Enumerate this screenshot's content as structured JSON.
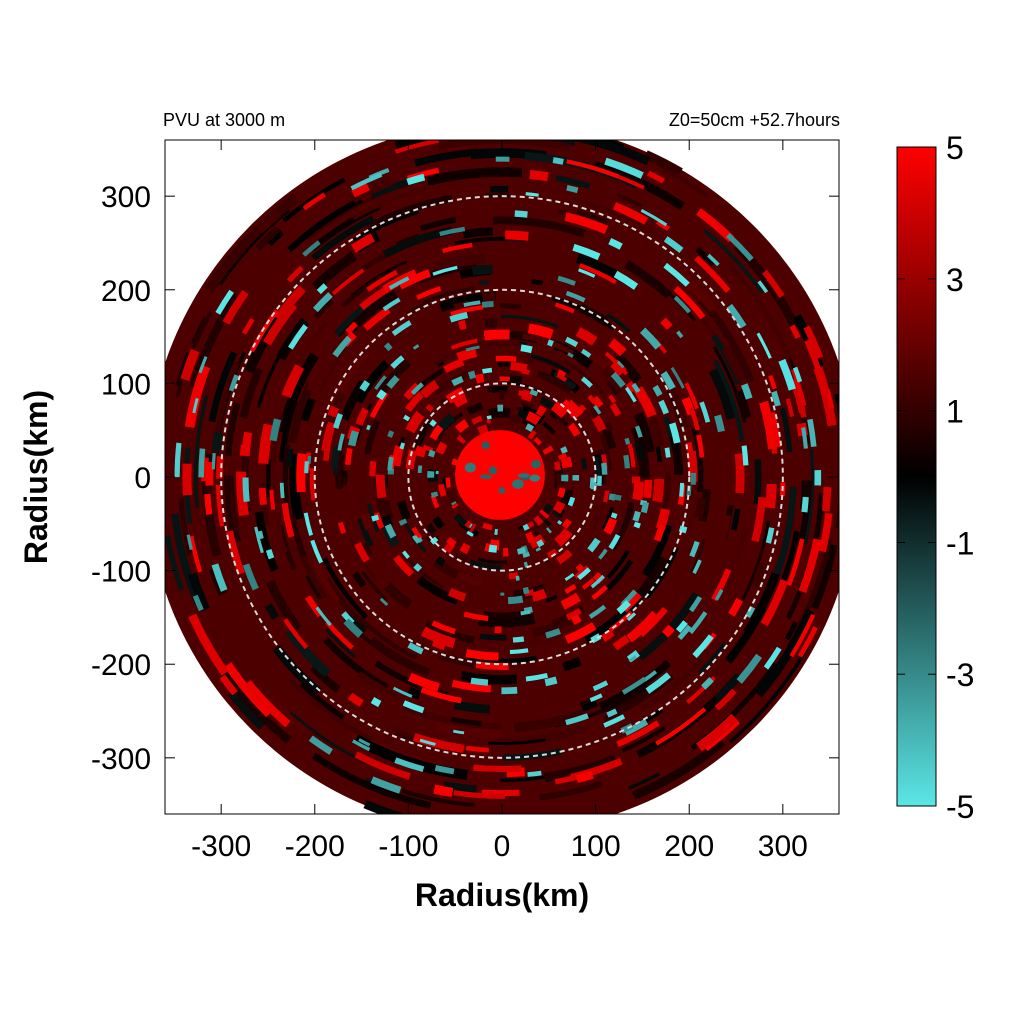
{
  "chart_data": {
    "type": "heatmap",
    "title_left": "PVU at  3000 m",
    "title_right": "Z0=50cm  +52.7hours",
    "xlabel": "Radius(km)",
    "ylabel": "Radius(km)",
    "xlim": [
      -360,
      360
    ],
    "ylim": [
      -360,
      360
    ],
    "x_ticks": [
      -300,
      -200,
      -100,
      0,
      100,
      200,
      300
    ],
    "y_ticks": [
      -300,
      -200,
      -100,
      0,
      100,
      200,
      300
    ],
    "domain_radius_km": 380,
    "reference_circles_km": [
      100,
      200,
      300
    ],
    "colorbar": {
      "min": -5,
      "max": 5,
      "ticks": [
        5,
        3,
        1,
        -1,
        -3,
        -5
      ],
      "colors": {
        "low": "#5be6e6",
        "mid": "#000000",
        "high": "#ff0000"
      }
    },
    "core": {
      "radius_km": 48,
      "value": 5
    },
    "field_description_values": {
      "background_value": 1.5,
      "positive_band_value": 4,
      "negative_band_value": -4
    }
  }
}
